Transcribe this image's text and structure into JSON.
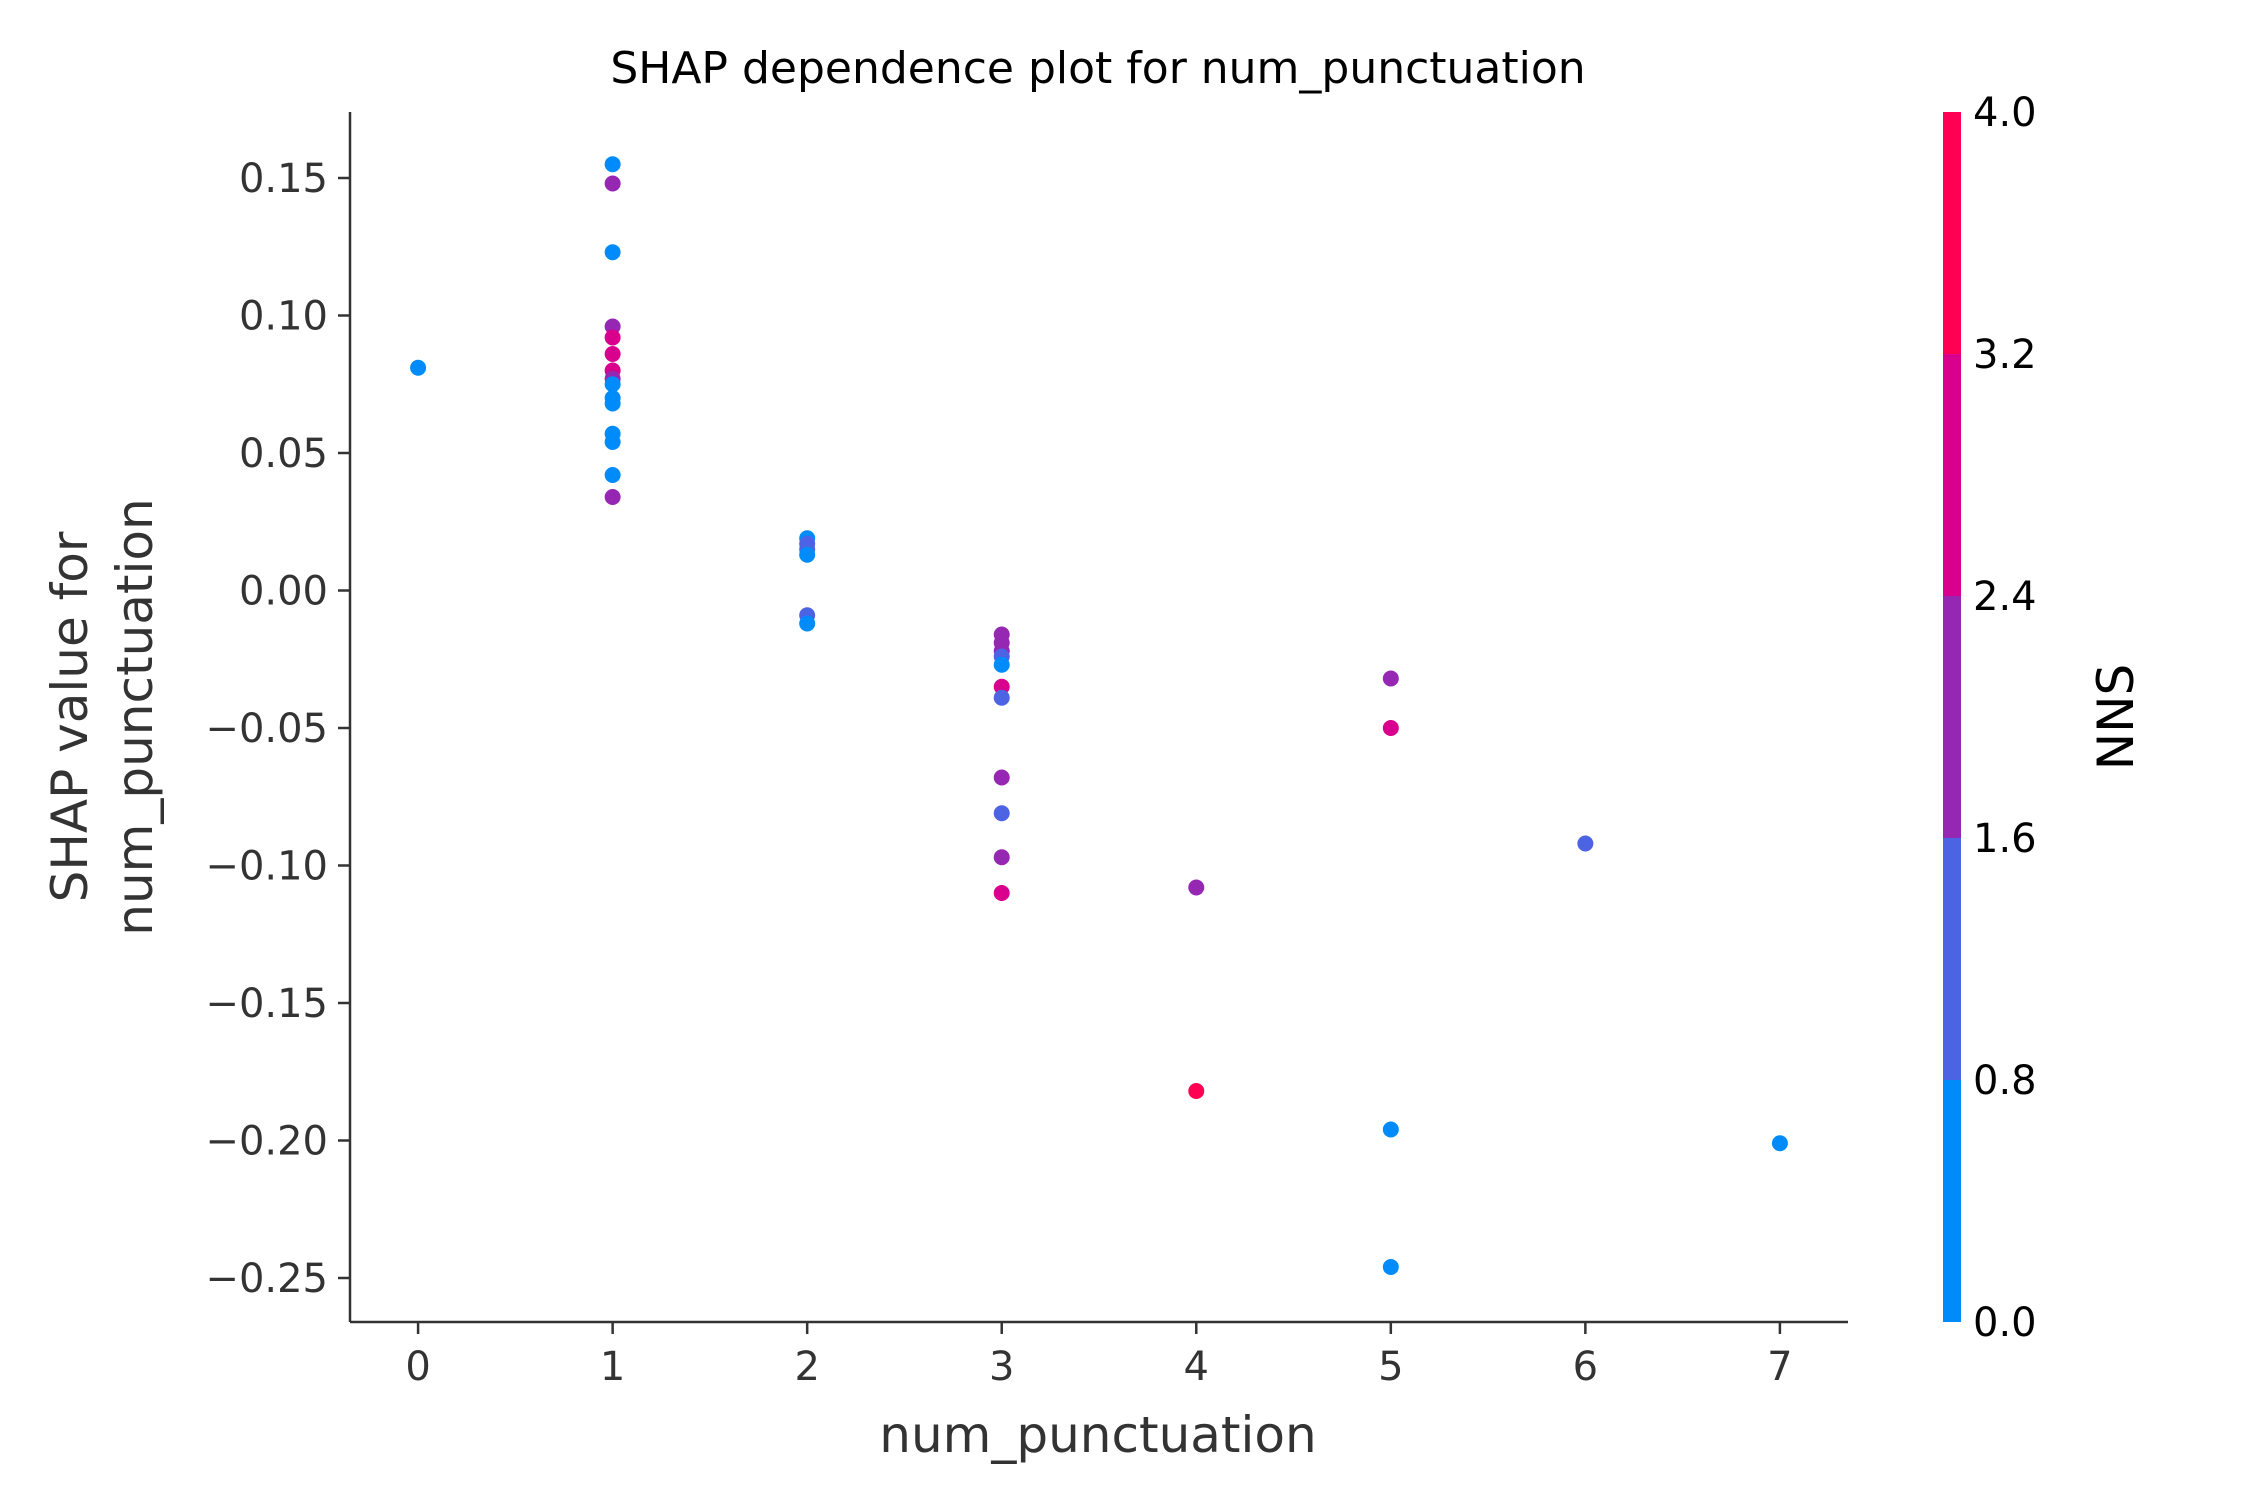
{
  "chart_data": {
    "type": "scatter",
    "title": "SHAP dependence plot for num_punctuation",
    "xlabel": "num_punctuation",
    "ylabel_line1": "SHAP value for",
    "ylabel_line2": "num_punctuation",
    "xlim": [
      -0.35,
      7.35
    ],
    "ylim": [
      -0.266,
      0.174
    ],
    "xticks": [
      0,
      1,
      2,
      3,
      4,
      5,
      6,
      7
    ],
    "xtick_labels": [
      "0",
      "1",
      "2",
      "3",
      "4",
      "5",
      "6",
      "7"
    ],
    "yticks": [
      0.15,
      0.1,
      0.05,
      0.0,
      -0.05,
      -0.1,
      -0.15,
      -0.2,
      -0.25
    ],
    "ytick_labels": [
      "0.15",
      "0.10",
      "0.05",
      "0.00",
      "−0.05",
      "−0.10",
      "−0.15",
      "−0.20",
      "−0.25"
    ],
    "grid": false,
    "colorbar": {
      "label": "NNS",
      "range": [
        0.0,
        4.0
      ],
      "ticks": [
        0.0,
        0.8,
        1.6,
        2.4,
        3.2,
        4.0
      ],
      "tick_labels": [
        "0.0",
        "0.8",
        "1.6",
        "2.4",
        "3.2",
        "4.0"
      ],
      "colors": [
        "#008bfb",
        "#4c64e3",
        "#9527b2",
        "#d8008c",
        "#ff0052"
      ]
    },
    "points": [
      {
        "x": 0,
        "y": 0.081,
        "c": 0
      },
      {
        "x": 1,
        "y": 0.155,
        "c": 0
      },
      {
        "x": 1,
        "y": 0.148,
        "c": 2
      },
      {
        "x": 1,
        "y": 0.123,
        "c": 0
      },
      {
        "x": 1,
        "y": 0.096,
        "c": 2
      },
      {
        "x": 1,
        "y": 0.092,
        "c": 3
      },
      {
        "x": 1,
        "y": 0.086,
        "c": 3
      },
      {
        "x": 1,
        "y": 0.08,
        "c": 3
      },
      {
        "x": 1,
        "y": 0.077,
        "c": 2
      },
      {
        "x": 1,
        "y": 0.075,
        "c": 0
      },
      {
        "x": 1,
        "y": 0.07,
        "c": 0
      },
      {
        "x": 1,
        "y": 0.068,
        "c": 0
      },
      {
        "x": 1,
        "y": 0.057,
        "c": 0
      },
      {
        "x": 1,
        "y": 0.054,
        "c": 0
      },
      {
        "x": 1,
        "y": 0.042,
        "c": 0
      },
      {
        "x": 1,
        "y": 0.034,
        "c": 2
      },
      {
        "x": 2,
        "y": 0.019,
        "c": 0
      },
      {
        "x": 2,
        "y": 0.017,
        "c": 1
      },
      {
        "x": 2,
        "y": 0.015,
        "c": 1
      },
      {
        "x": 2,
        "y": 0.013,
        "c": 0
      },
      {
        "x": 2,
        "y": -0.009,
        "c": 1
      },
      {
        "x": 2,
        "y": -0.012,
        "c": 0
      },
      {
        "x": 3,
        "y": -0.016,
        "c": 2
      },
      {
        "x": 3,
        "y": -0.019,
        "c": 2
      },
      {
        "x": 3,
        "y": -0.022,
        "c": 2
      },
      {
        "x": 3,
        "y": -0.024,
        "c": 1
      },
      {
        "x": 3,
        "y": -0.027,
        "c": 0
      },
      {
        "x": 3,
        "y": -0.035,
        "c": 3
      },
      {
        "x": 3,
        "y": -0.039,
        "c": 1
      },
      {
        "x": 3,
        "y": -0.068,
        "c": 2
      },
      {
        "x": 3,
        "y": -0.081,
        "c": 1
      },
      {
        "x": 3,
        "y": -0.097,
        "c": 2
      },
      {
        "x": 3,
        "y": -0.11,
        "c": 3
      },
      {
        "x": 4,
        "y": -0.108,
        "c": 2
      },
      {
        "x": 4,
        "y": -0.182,
        "c": 4
      },
      {
        "x": 5,
        "y": -0.032,
        "c": 2
      },
      {
        "x": 5,
        "y": -0.05,
        "c": 3
      },
      {
        "x": 5,
        "y": -0.196,
        "c": 0
      },
      {
        "x": 5,
        "y": -0.246,
        "c": 0
      },
      {
        "x": 6,
        "y": -0.092,
        "c": 1
      },
      {
        "x": 7,
        "y": -0.201,
        "c": 0
      }
    ]
  }
}
